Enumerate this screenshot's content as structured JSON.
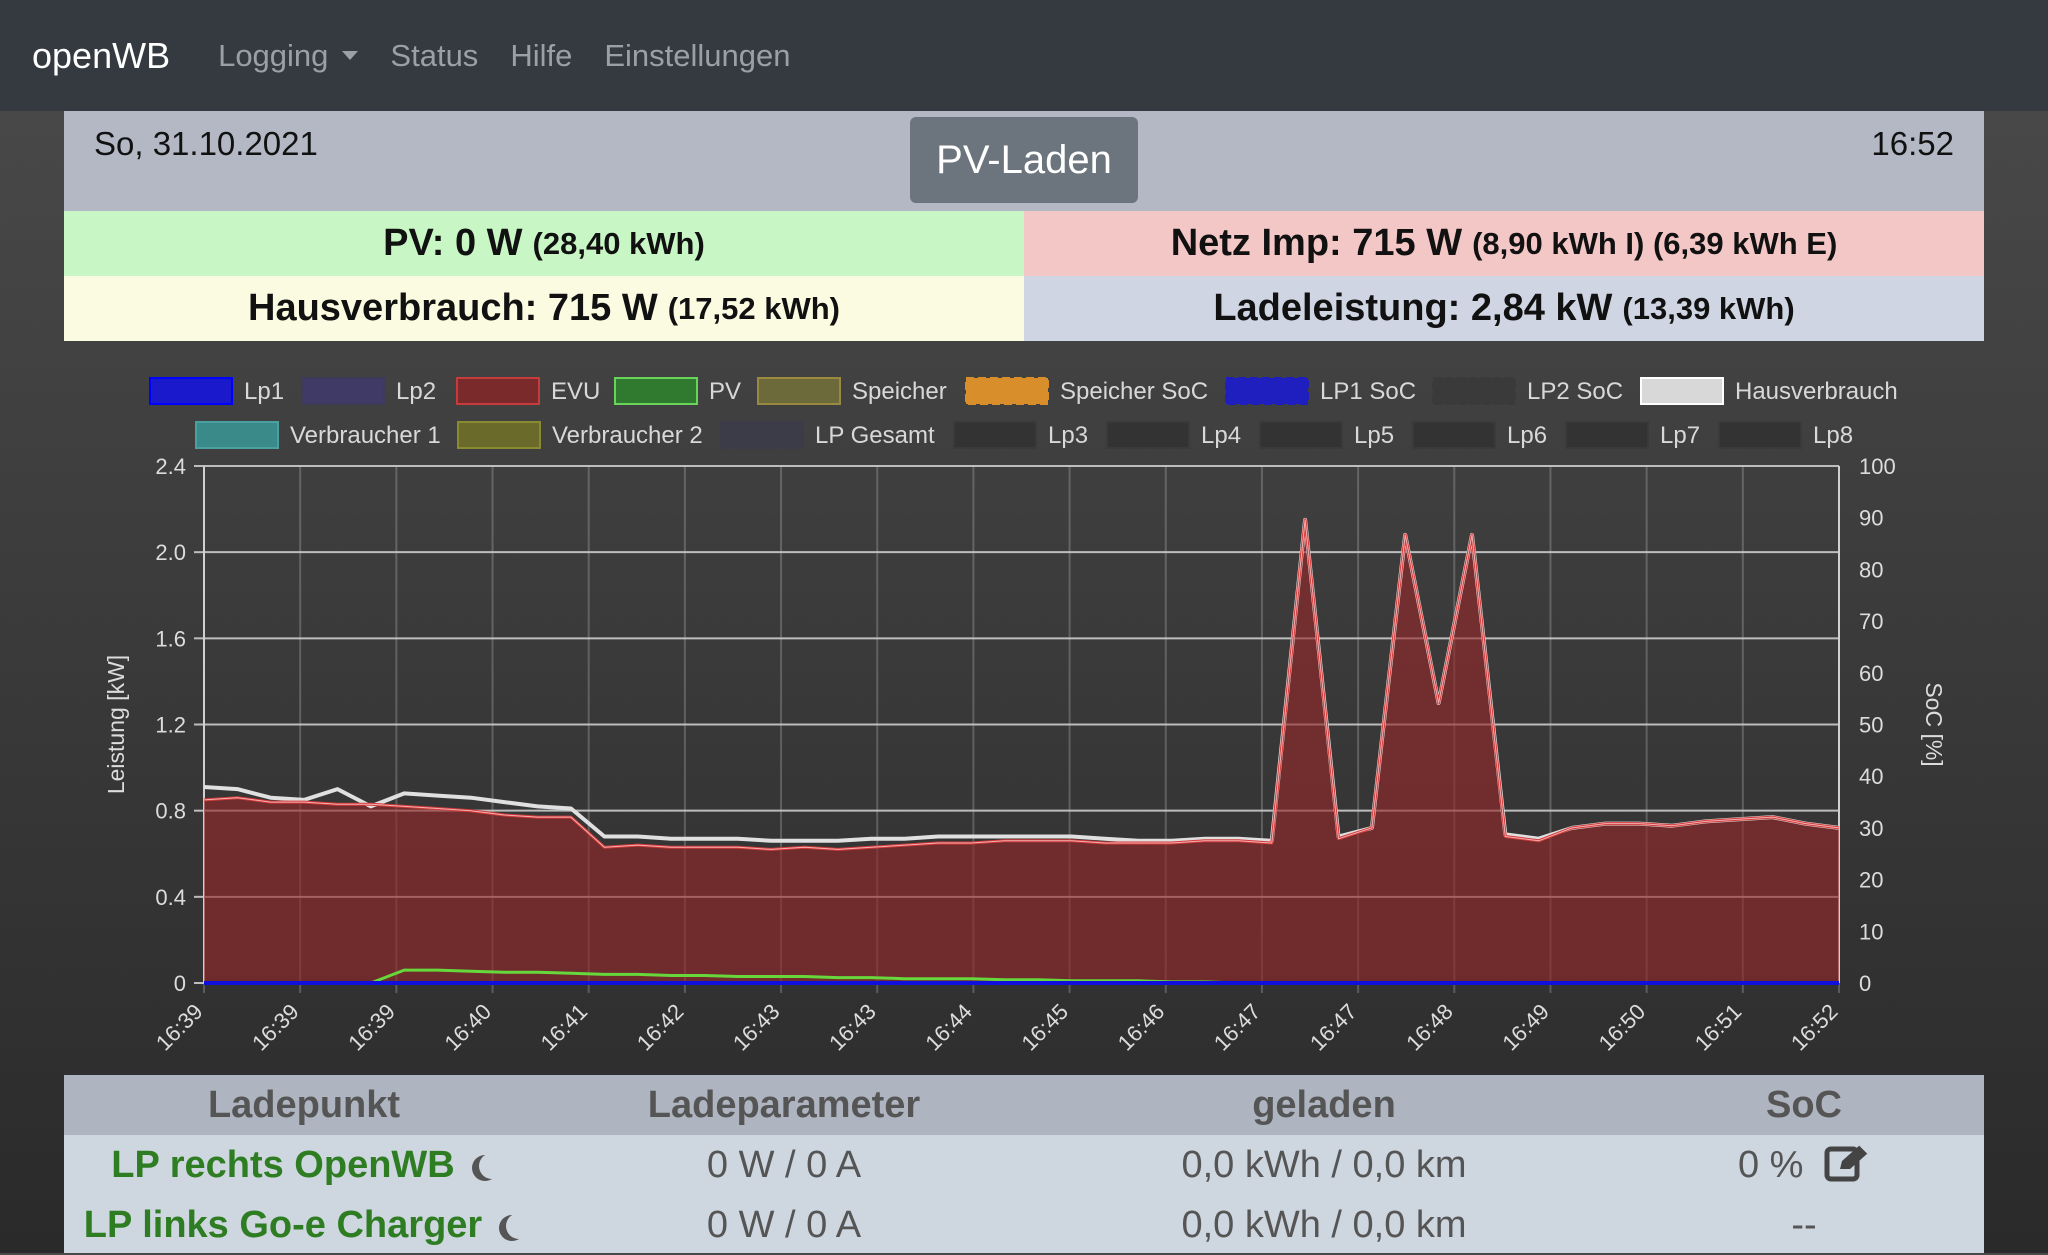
{
  "nav": {
    "brand": "openWB",
    "items": [
      {
        "label": "Logging",
        "dropdown": true
      },
      {
        "label": "Status"
      },
      {
        "label": "Hilfe"
      },
      {
        "label": "Einstellungen"
      }
    ]
  },
  "header": {
    "date": "So, 31.10.2021",
    "time": "16:52",
    "mode": "PV-Laden"
  },
  "summary": {
    "pv": {
      "label": "PV: 0 W",
      "energy": "(28,40 kWh)"
    },
    "grid": {
      "label": "Netz Imp: 715 W",
      "energy": "(8,90 kWh I) (6,39 kWh E)"
    },
    "house": {
      "label": "Hausverbrauch: 715 W",
      "energy": "(17,52 kWh)"
    },
    "charge": {
      "label": "Ladeleistung: 2,84 kW",
      "energy": "(13,39 kWh)"
    }
  },
  "colors": {
    "pv_bg": "#c8f7c5",
    "grid_bg": "#f4c7c7",
    "house_bg": "#fbfbe2",
    "charge_bg": "#cfd5e2",
    "evu": "#d33a3a",
    "pv": "#67d83b",
    "house": "#e0e0e0",
    "lp1": "#1010dd"
  },
  "chart_data": {
    "type": "line",
    "ylabel": "Leistung [kW]",
    "y2label": "SoC [%]",
    "ylim": [
      0,
      2.4
    ],
    "y2lim": [
      0,
      100
    ],
    "yticks": [
      "0",
      "0.4",
      "0.8",
      "1.2",
      "1.6",
      "2.0",
      "2.4"
    ],
    "y2ticks": [
      "0",
      "10",
      "20",
      "30",
      "40",
      "50",
      "60",
      "70",
      "80",
      "90",
      "100"
    ],
    "xticks": [
      "16:39",
      "16:39",
      "16:39",
      "16:40",
      "16:41",
      "16:42",
      "16:43",
      "16:43",
      "16:44",
      "16:45",
      "16:46",
      "16:47",
      "16:47",
      "16:48",
      "16:49",
      "16:50",
      "16:51",
      "16:52"
    ],
    "legend": [
      {
        "name": "Lp1",
        "fill": "#1a1acc",
        "stroke": "#0000ff"
      },
      {
        "name": "Lp2",
        "fill": "#3f3a66",
        "stroke": "#3c3c5a"
      },
      {
        "name": "EVU",
        "fill": "#7a2a2a",
        "stroke": "#c43c3c"
      },
      {
        "name": "PV",
        "fill": "#2f7a2f",
        "stroke": "#6ad35a"
      },
      {
        "name": "Speicher",
        "fill": "#6c6a3a",
        "stroke": "#9a8a40"
      },
      {
        "name": "Speicher SoC",
        "fill": "#d98e2c",
        "stroke": "#d98e2c",
        "dashed": true
      },
      {
        "name": "LP1 SoC",
        "fill": "#1f1fbf",
        "stroke": "#1f1fbf",
        "dashed": true
      },
      {
        "name": "LP2 SoC",
        "fill": "#3a3a3a",
        "stroke": "#3a3a3a",
        "dashed": true
      },
      {
        "name": "Hausverbrauch",
        "fill": "#d8d8d8",
        "stroke": "#ffffff"
      },
      {
        "name": "Verbraucher 1",
        "fill": "#3a8a8a",
        "stroke": "#4aa0a0"
      },
      {
        "name": "Verbraucher 2",
        "fill": "#6a6a2a",
        "stroke": "#8a8a30"
      },
      {
        "name": "LP Gesamt",
        "fill": "#3c3c48",
        "stroke": "#3c3c48"
      },
      {
        "name": "Lp3",
        "fill": "#333",
        "stroke": "#3a3a3a"
      },
      {
        "name": "Lp4",
        "fill": "#333",
        "stroke": "#3a3a3a"
      },
      {
        "name": "Lp5",
        "fill": "#333",
        "stroke": "#3a3a3a"
      },
      {
        "name": "Lp6",
        "fill": "#333",
        "stroke": "#3a3a3a"
      },
      {
        "name": "Lp7",
        "fill": "#333",
        "stroke": "#3a3a3a"
      },
      {
        "name": "Lp8",
        "fill": "#333",
        "stroke": "#3a3a3a"
      }
    ],
    "series": [
      {
        "name": "EVU",
        "values": [
          0.85,
          0.86,
          0.84,
          0.84,
          0.83,
          0.83,
          0.82,
          0.81,
          0.8,
          0.78,
          0.77,
          0.77,
          0.63,
          0.64,
          0.63,
          0.63,
          0.63,
          0.62,
          0.63,
          0.62,
          0.63,
          0.64,
          0.65,
          0.65,
          0.66,
          0.66,
          0.66,
          0.65,
          0.65,
          0.65,
          0.66,
          0.66,
          0.65,
          2.15,
          0.67,
          0.72,
          2.08,
          1.3,
          2.08,
          0.68,
          0.66,
          0.72,
          0.74,
          0.74,
          0.73,
          0.75,
          0.76,
          0.77,
          0.74,
          0.72
        ]
      },
      {
        "name": "Hausverbrauch",
        "values": [
          0.91,
          0.9,
          0.86,
          0.85,
          0.9,
          0.82,
          0.88,
          0.87,
          0.86,
          0.84,
          0.82,
          0.81,
          0.68,
          0.68,
          0.67,
          0.67,
          0.67,
          0.66,
          0.66,
          0.66,
          0.67,
          0.67,
          0.68,
          0.68,
          0.68,
          0.68,
          0.68,
          0.67,
          0.66,
          0.66,
          0.67,
          0.67,
          0.66,
          2.15,
          0.68,
          0.72,
          2.08,
          1.3,
          2.08,
          0.69,
          0.67,
          0.72,
          0.74,
          0.74,
          0.73,
          0.75,
          0.76,
          0.77,
          0.74,
          0.72
        ]
      },
      {
        "name": "PV",
        "values": [
          0,
          0,
          0,
          0,
          0,
          0,
          0.06,
          0.06,
          0.055,
          0.05,
          0.05,
          0.045,
          0.04,
          0.04,
          0.035,
          0.035,
          0.03,
          0.03,
          0.03,
          0.025,
          0.025,
          0.02,
          0.02,
          0.02,
          0.015,
          0.015,
          0.01,
          0.01,
          0.01,
          0.005,
          0.005,
          0,
          0,
          0,
          0,
          0,
          0,
          0,
          0,
          0,
          0,
          0,
          0,
          0,
          0,
          0,
          0,
          0,
          0,
          0
        ]
      },
      {
        "name": "Lp1",
        "values": [
          0,
          0,
          0,
          0,
          0,
          0,
          0,
          0,
          0,
          0,
          0,
          0,
          0,
          0,
          0,
          0,
          0,
          0,
          0,
          0,
          0,
          0,
          0,
          0,
          0,
          0,
          0,
          0,
          0,
          0,
          0,
          0,
          0,
          0,
          0,
          0,
          0,
          0,
          0,
          0,
          0,
          0,
          0,
          0,
          0,
          0,
          0,
          0,
          0,
          0
        ]
      }
    ]
  },
  "table": {
    "headers": [
      "Ladepunkt",
      "Ladeparameter",
      "geladen",
      "SoC"
    ],
    "rows": [
      {
        "name": "LP rechts OpenWB",
        "param": "0 W / 0 A",
        "charged": "0,0 kWh / 0,0 km",
        "soc": "0 %",
        "editable": true
      },
      {
        "name": "LP links Go-e Charger",
        "param": "0 W / 0 A",
        "charged": "0,0 kWh / 0,0 km",
        "soc": "--",
        "editable": false
      }
    ]
  }
}
